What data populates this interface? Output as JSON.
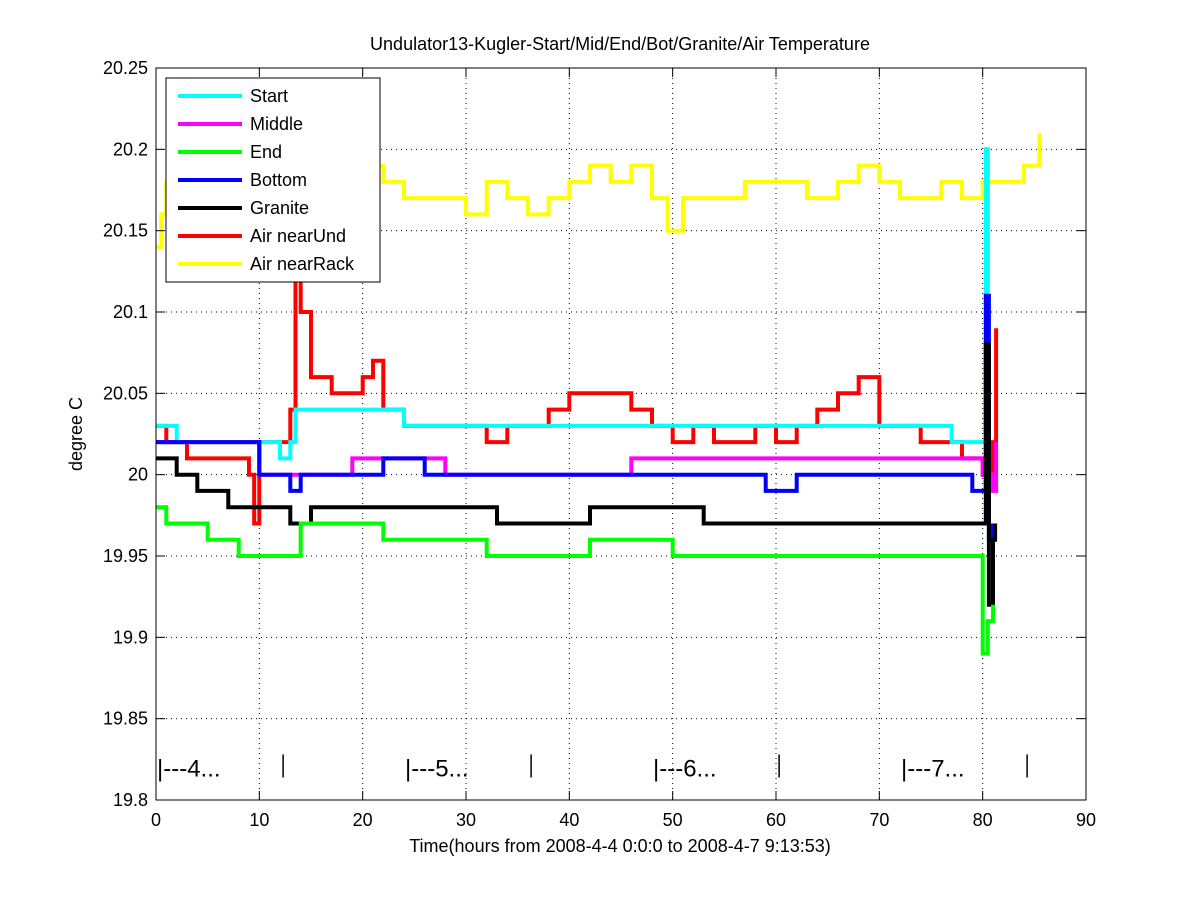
{
  "chart_data": {
    "type": "line",
    "title": "Undulator13-Kugler-Start/Mid/End/Bot/Granite/Air Temperature",
    "xlabel": "Time(hours from 2008-4-4 0:0:0 to 2008-4-7 9:13:53)",
    "ylabel": "degree C",
    "xlim": [
      0,
      90
    ],
    "ylim": [
      19.8,
      20.25
    ],
    "xticks": [
      "0",
      "10",
      "20",
      "30",
      "40",
      "50",
      "60",
      "70",
      "80",
      "90"
    ],
    "yticks": [
      "19.8",
      "19.85",
      "19.9",
      "19.95",
      "20",
      "20.05",
      "20.1",
      "20.15",
      "20.2",
      "20.25"
    ],
    "xtick_values": [
      0,
      10,
      20,
      30,
      40,
      50,
      60,
      70,
      80,
      90
    ],
    "ytick_values": [
      19.8,
      19.85,
      19.9,
      19.95,
      20.0,
      20.05,
      20.1,
      20.15,
      20.2,
      20.25
    ],
    "grid": true,
    "legend_position": "top-left",
    "day_markers": [
      {
        "label": "|---4...",
        "x": 0,
        "end": 12.3
      },
      {
        "label": "|---5...",
        "x": 24,
        "end": 36.3
      },
      {
        "label": "|---6...",
        "x": 48,
        "end": 60.3
      },
      {
        "label": "|---7...",
        "x": 72,
        "end": 84.3
      }
    ],
    "day_marker_y": 19.82,
    "series": [
      {
        "name": "Air nearRack",
        "color": "#ffff00",
        "x": [
          0,
          0.5,
          1,
          3,
          5,
          8,
          10,
          12,
          13,
          15,
          18,
          20,
          22,
          24,
          26,
          28,
          30,
          32,
          34,
          36,
          38,
          40,
          42,
          44,
          46,
          48,
          49.5,
          51,
          54,
          57,
          60,
          63,
          66,
          68,
          70,
          72,
          74,
          76,
          78,
          80,
          82,
          84,
          85.5
        ],
        "y": [
          20.14,
          20.16,
          20.18,
          20.19,
          20.17,
          20.18,
          20.17,
          20.18,
          20.19,
          20.18,
          20.18,
          20.19,
          20.18,
          20.17,
          20.17,
          20.17,
          20.16,
          20.18,
          20.17,
          20.16,
          20.17,
          20.18,
          20.19,
          20.18,
          20.19,
          20.17,
          20.15,
          20.17,
          20.17,
          20.18,
          20.18,
          20.17,
          20.18,
          20.19,
          20.18,
          20.17,
          20.17,
          20.18,
          20.17,
          20.18,
          20.18,
          20.19,
          20.21
        ]
      },
      {
        "name": "Air nearUnd",
        "color": "#ff0000",
        "x": [
          0,
          1,
          3,
          5,
          7,
          9,
          9.5,
          10,
          12,
          13,
          13.5,
          14,
          15,
          17,
          20,
          21,
          22,
          24,
          26,
          28,
          30,
          32,
          34,
          36,
          38,
          40,
          42,
          44,
          46,
          48,
          50,
          52,
          54,
          56,
          58,
          60,
          62,
          64,
          66,
          68,
          70,
          72,
          74,
          76,
          78,
          80,
          81,
          81.3
        ],
        "y": [
          20.03,
          20.02,
          20.01,
          20.01,
          20.01,
          20.0,
          19.97,
          20.02,
          20.02,
          20.04,
          20.12,
          20.1,
          20.06,
          20.05,
          20.06,
          20.07,
          20.04,
          20.03,
          20.03,
          20.03,
          20.03,
          20.02,
          20.03,
          20.03,
          20.04,
          20.05,
          20.05,
          20.05,
          20.04,
          20.03,
          20.02,
          20.03,
          20.02,
          20.02,
          20.03,
          20.02,
          20.03,
          20.04,
          20.05,
          20.06,
          20.03,
          20.03,
          20.02,
          20.02,
          20.01,
          20.0,
          20.02,
          20.09
        ]
      },
      {
        "name": "Start",
        "color": "#00ffff",
        "x": [
          0,
          2,
          4,
          10,
          12,
          13,
          13.5,
          14,
          20,
          23,
          24,
          28,
          35,
          45,
          60,
          70,
          75,
          77,
          80,
          80.3,
          80.5,
          81
        ],
        "y": [
          20.03,
          20.02,
          20.02,
          20.02,
          20.01,
          20.02,
          20.04,
          20.04,
          20.04,
          20.04,
          20.03,
          20.03,
          20.03,
          20.03,
          20.03,
          20.03,
          20.03,
          20.02,
          20.02,
          20.2,
          20.0,
          19.99
        ]
      },
      {
        "name": "Middle",
        "color": "#ff00ff",
        "x": [
          0,
          10,
          18,
          19,
          27,
          28,
          45,
          46,
          80,
          81,
          81.3
        ],
        "y": [
          20.02,
          20.0,
          20.0,
          20.01,
          20.01,
          20.0,
          20.0,
          20.01,
          20.0,
          19.99,
          20.02
        ]
      },
      {
        "name": "Bottom",
        "color": "#0000ff",
        "x": [
          0,
          10,
          12.5,
          13,
          14,
          21,
          22,
          25,
          26,
          58,
          59,
          61,
          62,
          78,
          79,
          80,
          80.3,
          80.6,
          81
        ],
        "y": [
          20.02,
          20.0,
          20.0,
          19.99,
          20.0,
          20.0,
          20.01,
          20.01,
          20.0,
          20.0,
          19.99,
          19.99,
          20.0,
          20.0,
          19.99,
          19.99,
          20.11,
          19.96,
          19.97
        ]
      },
      {
        "name": "Granite",
        "color": "#000000",
        "x": [
          0,
          2,
          4,
          7,
          12,
          13,
          14.5,
          15,
          25,
          32,
          33,
          40,
          42,
          48,
          52,
          53,
          70,
          72,
          80,
          80.3,
          80.6,
          81,
          81.2
        ],
        "y": [
          20.01,
          20.0,
          19.99,
          19.98,
          19.98,
          19.97,
          19.97,
          19.98,
          19.98,
          19.98,
          19.97,
          19.97,
          19.98,
          19.98,
          19.98,
          19.97,
          19.97,
          19.97,
          19.97,
          20.08,
          19.92,
          19.96,
          19.97
        ]
      },
      {
        "name": "End",
        "color": "#00ff00",
        "x": [
          0,
          1,
          5,
          8,
          9,
          10,
          13,
          14,
          15,
          20,
          22,
          30,
          32,
          40,
          42,
          48,
          50,
          70,
          75,
          79,
          80,
          80.5,
          81
        ],
        "y": [
          19.98,
          19.97,
          19.96,
          19.95,
          19.95,
          19.95,
          19.95,
          19.97,
          19.97,
          19.97,
          19.96,
          19.96,
          19.95,
          19.95,
          19.96,
          19.96,
          19.95,
          19.95,
          19.95,
          19.95,
          19.89,
          19.91,
          19.92
        ]
      }
    ],
    "legend_order": [
      "Start",
      "Middle",
      "End",
      "Bottom",
      "Granite",
      "Air nearUnd",
      "Air nearRack"
    ]
  }
}
